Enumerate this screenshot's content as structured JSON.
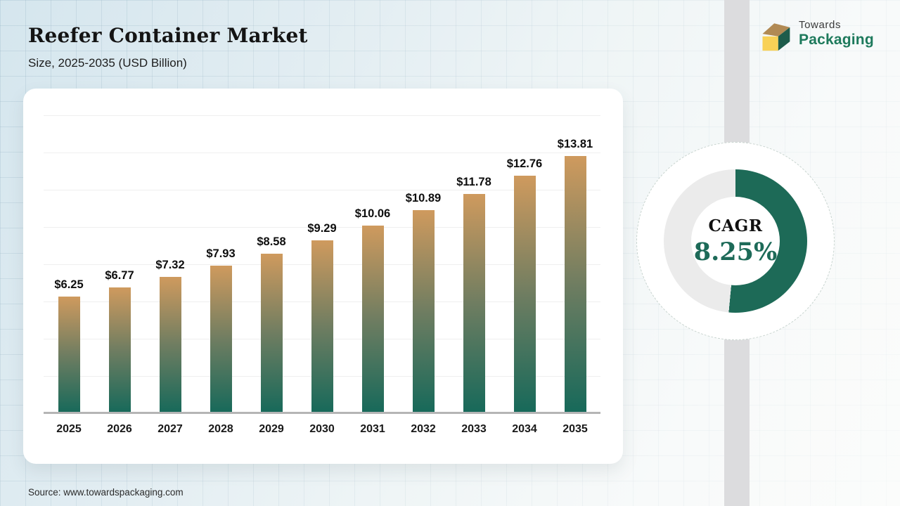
{
  "header": {
    "title": "Reefer Container Market",
    "subtitle": "Size, 2025-2035 (USD Billion)"
  },
  "logo": {
    "line1": "Towards",
    "line2": "Packaging",
    "icon": "cube-logo-icon",
    "colors": {
      "cube_top": "#b18a54",
      "cube_front": "#f8d156",
      "cube_side": "#1d5c4b",
      "text_top": "#3a3a3a",
      "text_bottom": "#1e7a5c"
    }
  },
  "footer": {
    "source": "Source: www.towardspackaging.com"
  },
  "chart_data": [
    {
      "type": "bar",
      "title": "Reefer Container Market",
      "subtitle": "Size, 2025-2035 (USD Billion)",
      "unit": "USD Billion",
      "categories": [
        "2025",
        "2026",
        "2027",
        "2028",
        "2029",
        "2030",
        "2031",
        "2032",
        "2033",
        "2034",
        "2035"
      ],
      "values": [
        6.25,
        6.77,
        7.32,
        7.93,
        8.58,
        9.29,
        10.06,
        10.89,
        11.78,
        12.76,
        13.81
      ],
      "data_labels": [
        "$6.25",
        "$6.77",
        "$7.32",
        "$7.93",
        "$8.58",
        "$9.29",
        "$10.06",
        "$10.89",
        "$11.78",
        "$12.76",
        "$13.81"
      ],
      "xlabel": "",
      "ylabel": "",
      "ylim": [
        0,
        16
      ],
      "gridline_step": 2,
      "grid": true,
      "legend": false,
      "bar_color_gradient": [
        "#cf9a5e",
        "#6f7d61",
        "#16695a"
      ]
    },
    {
      "type": "pie",
      "subtype": "donut-gauge",
      "label": "CAGR",
      "value_label": "8.25%",
      "value_percent_filled": 51.5,
      "colors": {
        "filled": "#1d6a57",
        "track": "#ebebeb"
      }
    }
  ]
}
